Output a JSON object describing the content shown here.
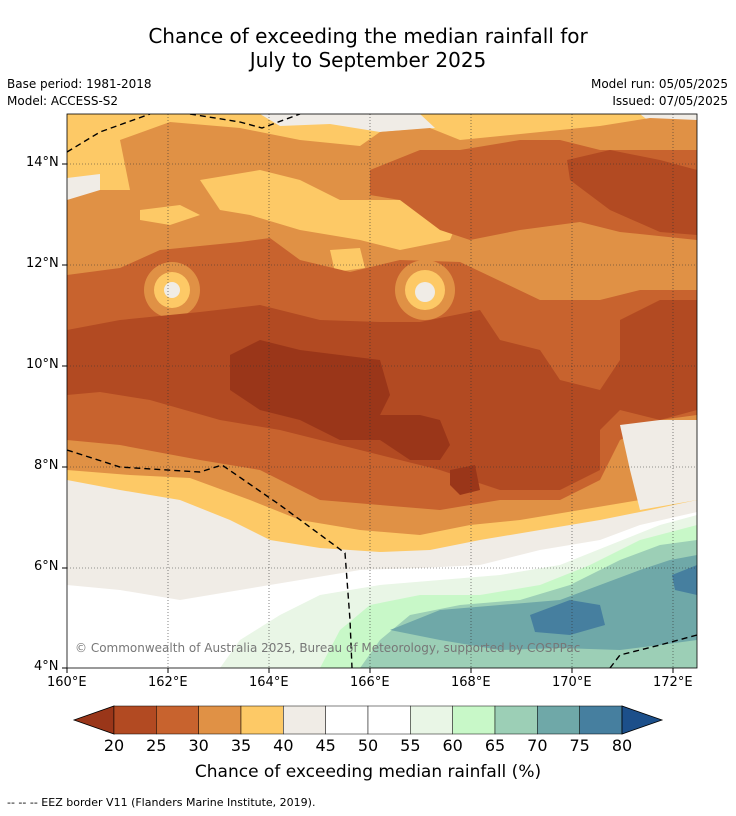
{
  "title_line1": "Chance of exceeding the median rainfall for",
  "title_line2": "July to September 2025",
  "base_period": "Base period: 1981-2018",
  "model": "Model: ACCESS-S2",
  "model_run": "Model run: 05/05/2025",
  "issued": "Issued: 07/05/2025",
  "copyright": "© Commonwealth of Australia 2025, Bureau of Meteorology, supported by COSPPac",
  "lat_labels": [
    "14°N",
    "12°N",
    "10°N",
    "8°N",
    "6°N",
    "4°N"
  ],
  "lon_labels": [
    "160°E",
    "162°E",
    "164°E",
    "166°E",
    "168°E",
    "170°E",
    "172°E"
  ],
  "colorbar": {
    "ticks": [
      "20",
      "25",
      "30",
      "35",
      "40",
      "45",
      "50",
      "55",
      "60",
      "65",
      "70",
      "75",
      "80"
    ],
    "colors": [
      "#9a3619",
      "#b24a22",
      "#c8632e",
      "#e09145",
      "#fdc966",
      "#f0ece6",
      "#ffffff",
      "#ffffff",
      "#e9f6e6",
      "#c8f8c8",
      "#9ccfb6",
      "#6fa8a8",
      "#467f9f",
      "#1c4f8a"
    ],
    "title": "Chance of exceeding median rainfall (%)"
  },
  "footnote": "--  --  -- EEZ border V11 (Flanders Marine Institute, 2019)."
}
